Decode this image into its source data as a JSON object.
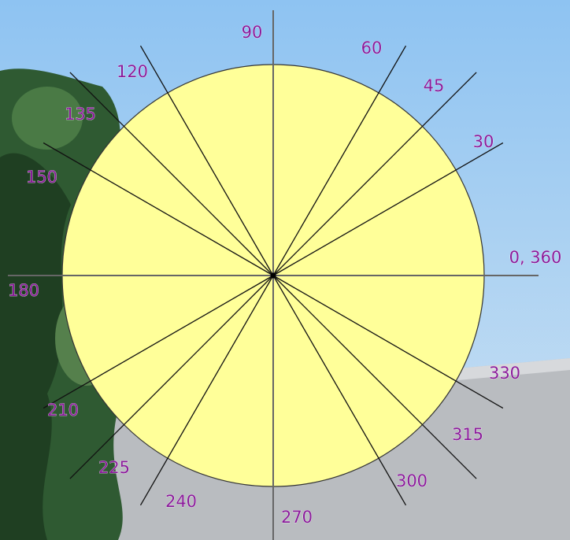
{
  "angles": [
    {
      "value": 0,
      "label": "0, 360"
    },
    30,
    45,
    60,
    90,
    120,
    135,
    150,
    180,
    210,
    225,
    240,
    270,
    300,
    315,
    330
  ]
}
